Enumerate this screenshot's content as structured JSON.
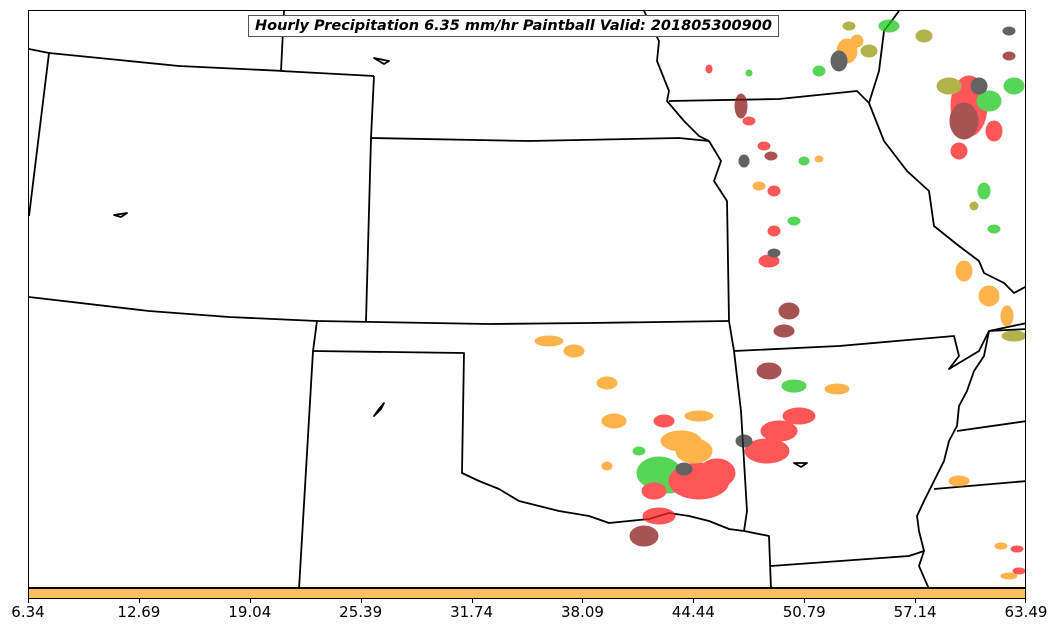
{
  "title": "Hourly Precipitation 6.35 mm/hr Paintball Valid: 201805300900",
  "colorbar": {
    "color": "#ffc060",
    "ticks": [
      "6.34",
      "12.69",
      "19.04",
      "25.39",
      "31.74",
      "38.09",
      "44.44",
      "50.79",
      "57.14",
      "63.49"
    ]
  },
  "colors": {
    "border": "#000000",
    "paint_red": "#ff2020",
    "paint_green": "#20c820",
    "paint_orange": "#ff9a10",
    "paint_darkred": "#8b1a1a",
    "paint_olive": "#9a9a10",
    "paint_dark": "#303030"
  }
}
